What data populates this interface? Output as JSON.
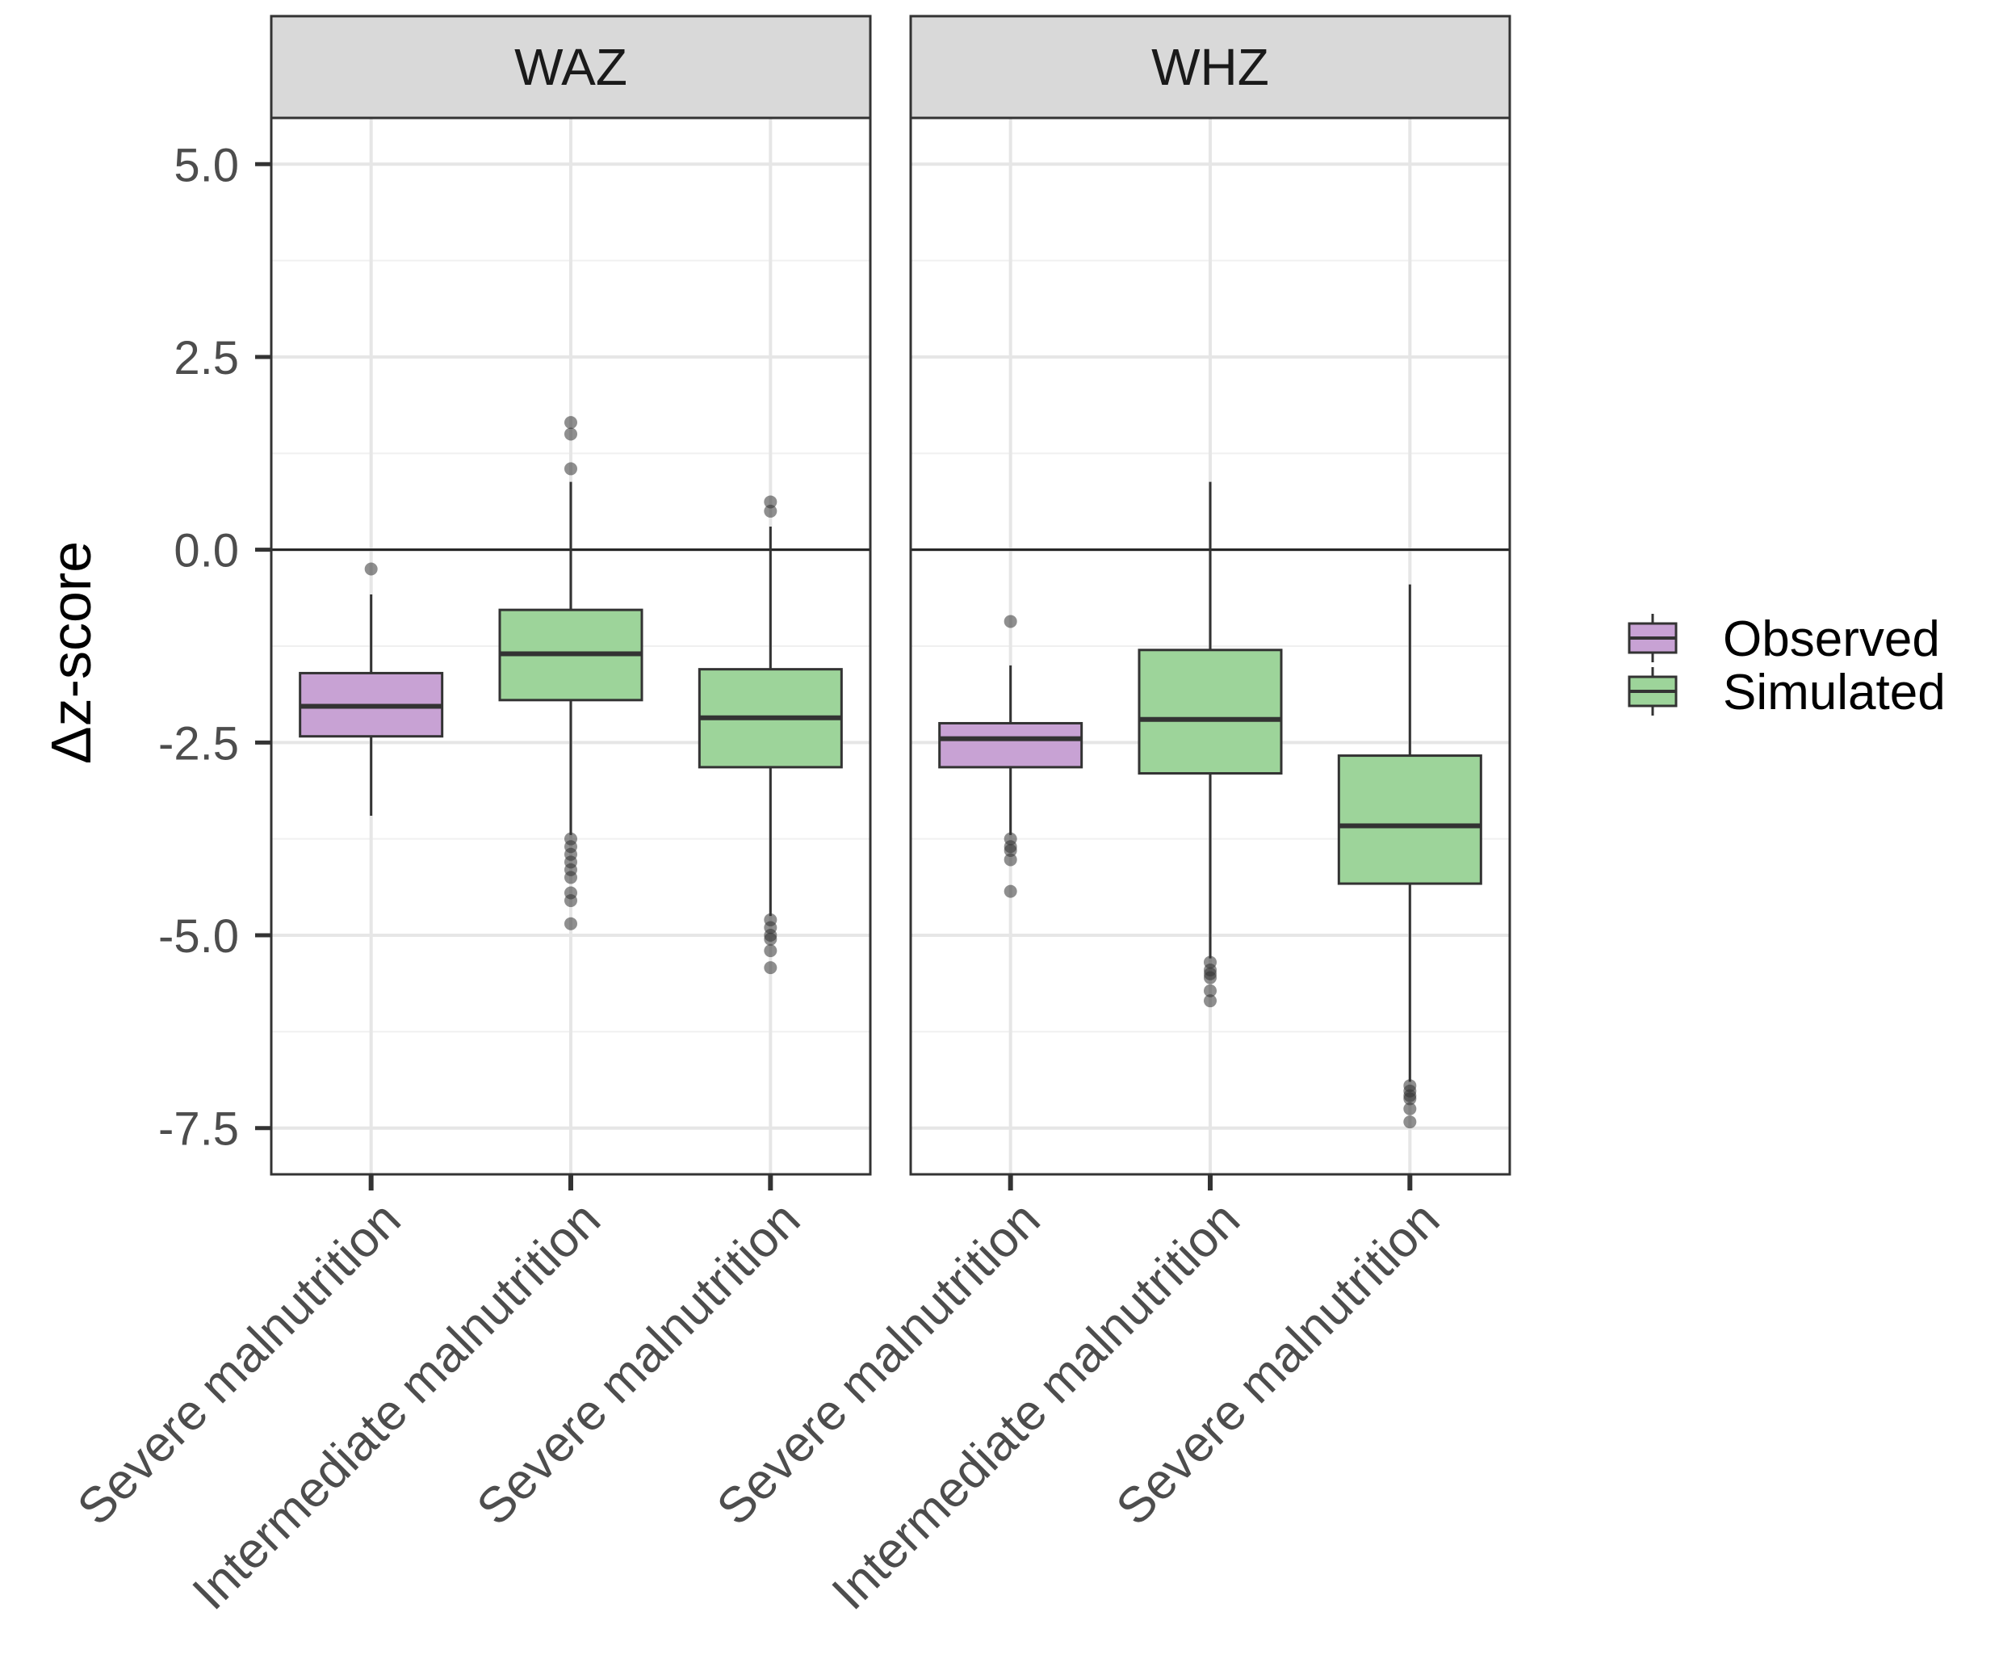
{
  "chart_data": {
    "type": "boxplot",
    "ylabel": "Δz-score",
    "yticks": [
      "5.0",
      "2.5",
      "0.0",
      "-2.5",
      "-5.0",
      "-7.5"
    ],
    "ytick_values": [
      5.0,
      2.5,
      0.0,
      -2.5,
      -5.0,
      -7.5
    ],
    "ylim": [
      -8.1,
      5.6
    ],
    "reference_line": 0.0,
    "grid": true,
    "legend": {
      "position": "right",
      "entries": [
        {
          "label": "Observed",
          "color": "#C8A2D4"
        },
        {
          "label": "Simulated",
          "color": "#9DD49A"
        }
      ]
    },
    "panels": [
      {
        "title": "WAZ",
        "categories": [
          "Severe malnutrition",
          "Intermediate malnutrition",
          "Severe malnutrition"
        ],
        "boxes": [
          {
            "group": "Observed",
            "whisker_low": -3.45,
            "q1": -2.42,
            "median": -2.03,
            "q3": -1.6,
            "whisker_high": -0.58,
            "outliers": [
              -0.25
            ]
          },
          {
            "group": "Simulated",
            "whisker_low": -3.7,
            "q1": -1.95,
            "median": -1.35,
            "q3": -0.78,
            "whisker_high": 0.88,
            "outliers": [
              1.65,
              1.5,
              1.05,
              -3.75,
              -3.85,
              -3.95,
              -4.05,
              -4.15,
              -4.25,
              -4.45,
              -4.55,
              -4.85
            ]
          },
          {
            "group": "Simulated",
            "whisker_low": -4.75,
            "q1": -2.82,
            "median": -2.18,
            "q3": -1.55,
            "whisker_high": 0.3,
            "outliers": [
              0.62,
              0.5,
              -4.8,
              -4.9,
              -5.0,
              -5.05,
              -5.2,
              -5.42
            ]
          }
        ]
      },
      {
        "title": "WHZ",
        "categories": [
          "Severe malnutrition",
          "Intermediate malnutrition",
          "Severe malnutrition"
        ],
        "boxes": [
          {
            "group": "Observed",
            "whisker_low": -3.7,
            "q1": -2.82,
            "median": -2.45,
            "q3": -2.25,
            "whisker_high": -1.5,
            "outliers": [
              -0.93,
              -3.75,
              -3.85,
              -3.9,
              -4.02,
              -4.43
            ]
          },
          {
            "group": "Simulated",
            "whisker_low": -5.3,
            "q1": -2.9,
            "median": -2.2,
            "q3": -1.3,
            "whisker_high": 0.88,
            "outliers": [
              -5.35,
              -5.45,
              -5.5,
              -5.55,
              -5.72,
              -5.85
            ]
          },
          {
            "group": "Simulated",
            "whisker_low": -6.9,
            "q1": -4.33,
            "median": -3.58,
            "q3": -2.67,
            "whisker_high": -0.45,
            "outliers": [
              -6.95,
              -7.02,
              -7.08,
              -7.12,
              -7.25,
              -7.42
            ]
          }
        ]
      }
    ]
  }
}
